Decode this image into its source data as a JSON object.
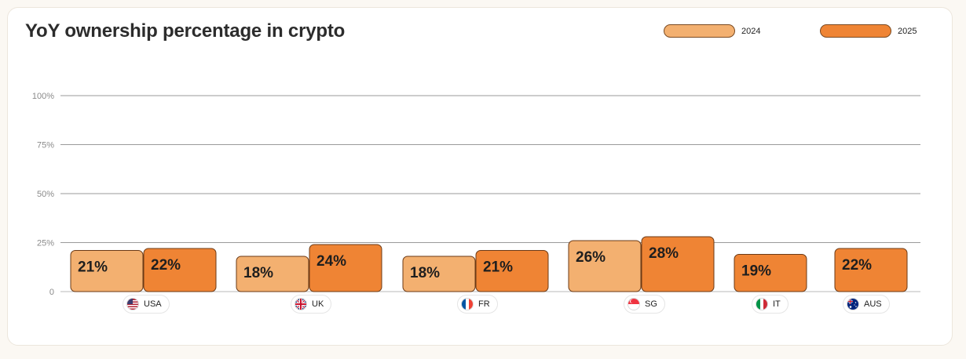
{
  "title": "YoY ownership percentage in crypto",
  "legend": [
    {
      "label": "2024",
      "color": "#f3b070"
    },
    {
      "label": "2025",
      "color": "#ef8434"
    }
  ],
  "countries": [
    {
      "code": "USA",
      "flag": "us-flag-icon"
    },
    {
      "code": "UK",
      "flag": "uk-flag-icon"
    },
    {
      "code": "FR",
      "flag": "fr-flag-icon"
    },
    {
      "code": "SG",
      "flag": "sg-flag-icon"
    },
    {
      "code": "IT",
      "flag": "it-flag-icon"
    },
    {
      "code": "AUS",
      "flag": "aus-flag-icon"
    }
  ],
  "chart_data": {
    "type": "bar",
    "title": "YoY ownership percentage in crypto",
    "categories": [
      "USA",
      "UK",
      "FR",
      "SG",
      "IT",
      "AUS"
    ],
    "series": [
      {
        "name": "2024",
        "values": [
          21,
          18,
          18,
          26,
          null,
          null
        ],
        "color": "#f3b070"
      },
      {
        "name": "2025",
        "values": [
          22,
          24,
          21,
          28,
          19,
          22
        ],
        "color": "#ef8434"
      }
    ],
    "data_labels": {
      "2024": [
        "21%",
        "18%",
        "18%",
        "26%",
        null,
        null
      ],
      "2025": [
        "22%",
        "24%",
        "21%",
        "28%",
        "19%",
        "22%"
      ]
    },
    "ylim": [
      0,
      100
    ],
    "yticks": [
      0,
      25,
      50,
      75,
      100
    ],
    "ytick_labels": [
      "0",
      "25%",
      "50%",
      "75%",
      "100%"
    ],
    "grid": true,
    "legend_position": "top-right"
  }
}
